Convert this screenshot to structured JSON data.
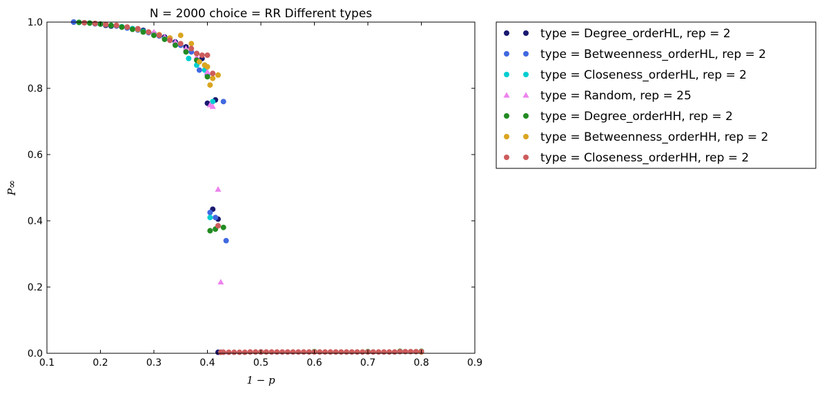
{
  "chart_data": {
    "type": "scatter",
    "title": "N = 2000 choice = RR Different types",
    "xlabel": "1 − p",
    "ylabel": "P∞",
    "xlim": [
      0.1,
      0.9
    ],
    "ylim": [
      0.0,
      1.0
    ],
    "xticks": [
      "0.1",
      "0.2",
      "0.3",
      "0.4",
      "0.5",
      "0.6",
      "0.7",
      "0.8",
      "0.9"
    ],
    "yticks": [
      "0.0",
      "0.2",
      "0.4",
      "0.6",
      "0.8",
      "1.0"
    ],
    "grid": false,
    "legend_position": "outside-right-top",
    "series": [
      {
        "name": "type = Degree_orderHL, rep = 2",
        "color": "#191970",
        "marker": "circle",
        "x": [
          0.15,
          0.17,
          0.19,
          0.21,
          0.22,
          0.24,
          0.26,
          0.28,
          0.3,
          0.32,
          0.34,
          0.36,
          0.38,
          0.39,
          0.4,
          0.41,
          0.415,
          0.42,
          0.42,
          0.425
        ],
        "y": [
          1.0,
          0.998,
          0.995,
          0.99,
          0.988,
          0.985,
          0.98,
          0.975,
          0.965,
          0.955,
          0.94,
          0.925,
          0.905,
          0.89,
          0.755,
          0.435,
          0.765,
          0.405,
          0.003,
          0.003
        ]
      },
      {
        "name": "type = Betweenness_orderHL, rep = 2",
        "color": "#4169e1",
        "marker": "circle",
        "x": [
          0.15,
          0.17,
          0.19,
          0.21,
          0.23,
          0.25,
          0.27,
          0.29,
          0.31,
          0.33,
          0.35,
          0.37,
          0.385,
          0.4,
          0.405,
          0.415,
          0.43,
          0.435
        ],
        "y": [
          1.0,
          0.998,
          0.995,
          0.992,
          0.988,
          0.982,
          0.976,
          0.968,
          0.958,
          0.945,
          0.93,
          0.91,
          0.855,
          0.84,
          0.425,
          0.41,
          0.76,
          0.34
        ]
      },
      {
        "name": "type = Closeness_orderHL, rep = 2",
        "color": "#00ced1",
        "marker": "circle",
        "x": [
          0.16,
          0.18,
          0.2,
          0.22,
          0.24,
          0.26,
          0.28,
          0.3,
          0.32,
          0.34,
          0.365,
          0.38,
          0.395,
          0.405,
          0.41
        ],
        "y": [
          0.999,
          0.997,
          0.994,
          0.99,
          0.986,
          0.98,
          0.972,
          0.963,
          0.95,
          0.935,
          0.89,
          0.87,
          0.855,
          0.41,
          0.76
        ]
      },
      {
        "name": "type = Random, rep = 25",
        "color": "#ee82ee",
        "marker": "triangle",
        "x": [
          0.3,
          0.32,
          0.34,
          0.36,
          0.38,
          0.4,
          0.405,
          0.41,
          0.42,
          0.425,
          0.43
        ],
        "y": [
          0.97,
          0.955,
          0.94,
          0.92,
          0.895,
          0.85,
          0.75,
          0.745,
          0.495,
          0.215,
          0.004
        ]
      },
      {
        "name": "type = Degree_orderHH, rep = 2",
        "color": "#228b22",
        "marker": "circle",
        "x": [
          0.16,
          0.18,
          0.2,
          0.22,
          0.24,
          0.26,
          0.28,
          0.3,
          0.32,
          0.34,
          0.36,
          0.38,
          0.395,
          0.4,
          0.405,
          0.415,
          0.42,
          0.43,
          0.5,
          0.6,
          0.7,
          0.76,
          0.8
        ],
        "y": [
          0.999,
          0.997,
          0.994,
          0.99,
          0.985,
          0.978,
          0.97,
          0.96,
          0.948,
          0.93,
          0.91,
          0.885,
          0.87,
          0.835,
          0.37,
          0.375,
          0.385,
          0.38,
          0.004,
          0.005,
          0.005,
          0.006,
          0.006
        ]
      },
      {
        "name": "type = Betweenness_orderHH, rep = 2",
        "color": "#daa520",
        "marker": "circle",
        "x": [
          0.17,
          0.19,
          0.21,
          0.23,
          0.25,
          0.27,
          0.29,
          0.31,
          0.33,
          0.35,
          0.37,
          0.385,
          0.395,
          0.4,
          0.405,
          0.41,
          0.42,
          0.8
        ],
        "y": [
          0.998,
          0.996,
          0.993,
          0.99,
          0.985,
          0.978,
          0.97,
          0.962,
          0.952,
          0.96,
          0.935,
          0.88,
          0.87,
          0.865,
          0.81,
          0.83,
          0.84,
          0.004
        ]
      },
      {
        "name": "type = Closeness_orderHH, rep = 2",
        "color": "#cd5c5c",
        "marker": "circle",
        "x": [
          0.17,
          0.19,
          0.21,
          0.23,
          0.25,
          0.27,
          0.29,
          0.31,
          0.33,
          0.35,
          0.37,
          0.38,
          0.39,
          0.4,
          0.41,
          0.42,
          0.425,
          0.43,
          0.44,
          0.45,
          0.46,
          0.47,
          0.48,
          0.49,
          0.5,
          0.51,
          0.52,
          0.53,
          0.54,
          0.55,
          0.56,
          0.57,
          0.58,
          0.59,
          0.6,
          0.61,
          0.62,
          0.63,
          0.64,
          0.65,
          0.66,
          0.67,
          0.68,
          0.69,
          0.7,
          0.71,
          0.72,
          0.73,
          0.74,
          0.75,
          0.76,
          0.77,
          0.78,
          0.79,
          0.8
        ],
        "y": [
          0.998,
          0.996,
          0.993,
          0.99,
          0.985,
          0.98,
          0.97,
          0.96,
          0.945,
          0.935,
          0.92,
          0.905,
          0.9,
          0.9,
          0.845,
          0.385,
          0.003,
          0.003,
          0.003,
          0.003,
          0.003,
          0.003,
          0.004,
          0.004,
          0.004,
          0.004,
          0.004,
          0.004,
          0.004,
          0.004,
          0.004,
          0.004,
          0.004,
          0.004,
          0.004,
          0.004,
          0.004,
          0.004,
          0.004,
          0.004,
          0.004,
          0.004,
          0.004,
          0.004,
          0.004,
          0.004,
          0.004,
          0.004,
          0.004,
          0.004,
          0.005,
          0.005,
          0.005,
          0.005,
          0.005
        ]
      }
    ]
  }
}
